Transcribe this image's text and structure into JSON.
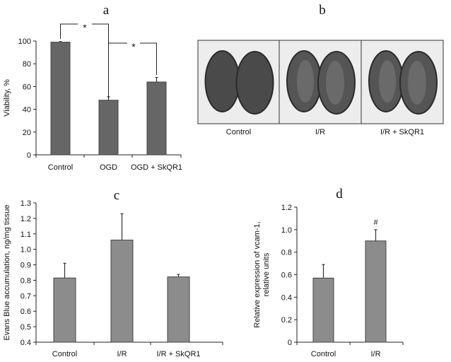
{
  "chart_data": [
    {
      "panel": "a",
      "type": "bar",
      "categories": [
        "Control",
        "OGD",
        "OGD + SkQR1"
      ],
      "values": [
        99,
        48,
        64
      ],
      "errors": [
        0.5,
        3,
        4
      ],
      "ylabel": "Viability, %",
      "ylim": [
        0,
        100
      ],
      "yticks": [
        "0",
        "20",
        "40",
        "60",
        "80",
        "100"
      ],
      "annotations": [
        {
          "text": "*",
          "between": [
            "Control",
            "OGD"
          ]
        },
        {
          "text": "*",
          "between": [
            "OGD",
            "OGD + SkQR1"
          ]
        }
      ],
      "bar_color": "#666666"
    },
    {
      "panel": "b",
      "type": "image-panel",
      "labels": [
        "Control",
        "I/R",
        "I/R + SkQR1"
      ]
    },
    {
      "panel": "c",
      "type": "bar",
      "categories": [
        "Control",
        "I/R",
        "I/R + SkQR1"
      ],
      "values": [
        0.815,
        1.06,
        0.822
      ],
      "errors": [
        0.095,
        0.17,
        0.016
      ],
      "ylabel": "Evans Blue accumulation, ng/mg tissue",
      "ylim": [
        0.4,
        1.3
      ],
      "yticks": [
        "0.4",
        "0.5",
        "0.6",
        "0.7",
        "0.8",
        "0.9",
        "1.0",
        "1.1",
        "1.2",
        "1.3"
      ],
      "bar_color": "#8c8c8c"
    },
    {
      "panel": "d",
      "type": "bar",
      "categories": [
        "Control",
        "I/R"
      ],
      "values": [
        0.57,
        0.9
      ],
      "errors": [
        0.12,
        0.1
      ],
      "ylabel_line1": "Relative expression of vcam-1,",
      "ylabel_line2": "relative units",
      "ylim": [
        0,
        1.2
      ],
      "yticks": [
        "0",
        "0.2",
        "0.4",
        "0.6",
        "0.8",
        "1.0",
        "1.2"
      ],
      "annotations": [
        {
          "text": "#",
          "over": "I/R"
        }
      ],
      "bar_color": "#8c8c8c"
    }
  ]
}
